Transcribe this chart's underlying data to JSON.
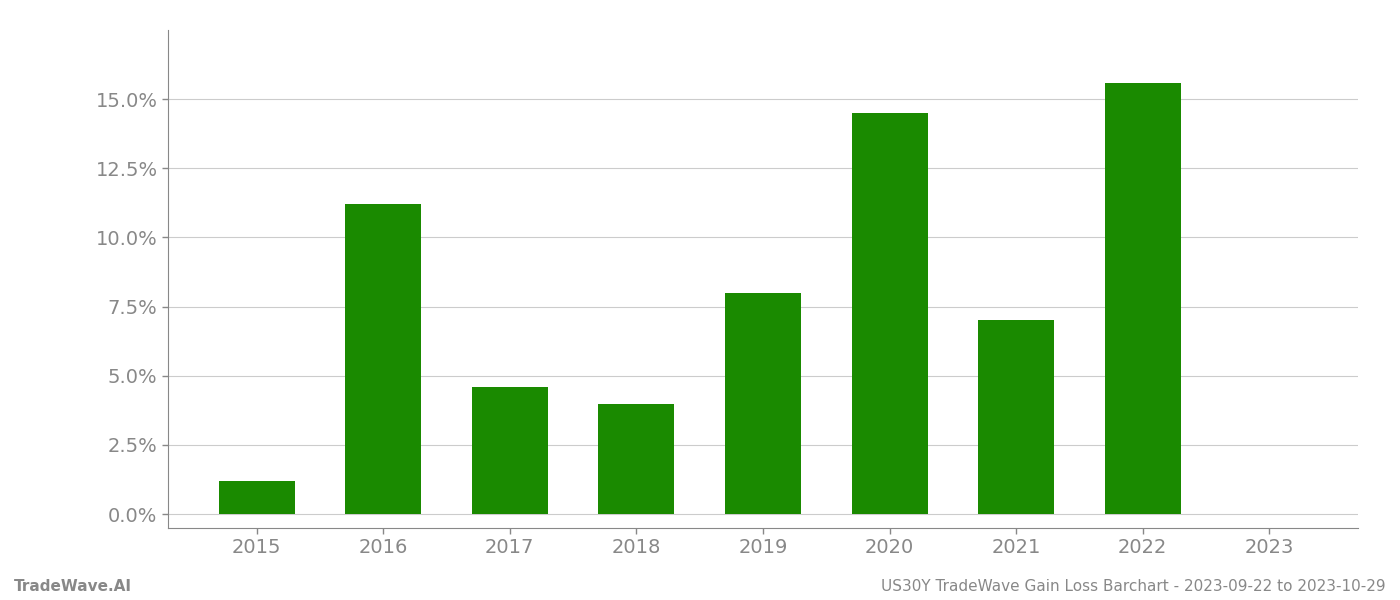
{
  "categories": [
    "2015",
    "2016",
    "2017",
    "2018",
    "2019",
    "2020",
    "2021",
    "2022",
    "2023"
  ],
  "values": [
    0.012,
    0.112,
    0.046,
    0.04,
    0.08,
    0.145,
    0.07,
    0.156,
    null
  ],
  "bar_color": "#1a8a00",
  "background_color": "#ffffff",
  "grid_color": "#cccccc",
  "axis_color": "#888888",
  "ylabel_ticks": [
    0.0,
    0.025,
    0.05,
    0.075,
    0.1,
    0.125,
    0.15
  ],
  "ylim": [
    -0.005,
    0.175
  ],
  "footer_left": "TradeWave.AI",
  "footer_right": "US30Y TradeWave Gain Loss Barchart - 2023-09-22 to 2023-10-29",
  "footer_color": "#888888",
  "footer_fontsize": 11,
  "tick_fontsize": 14,
  "bar_width": 0.6
}
